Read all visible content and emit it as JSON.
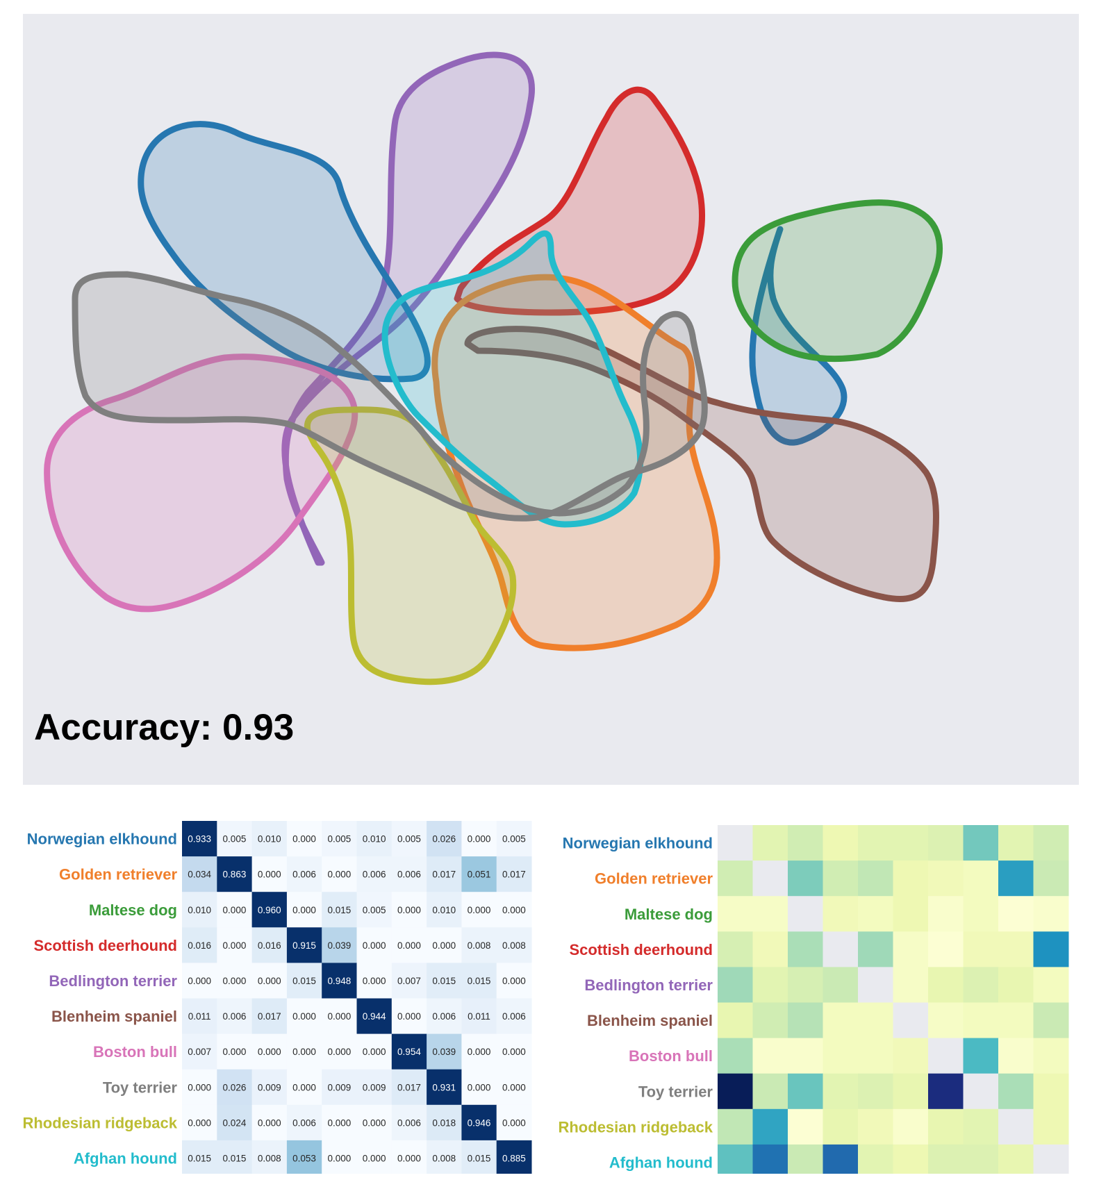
{
  "overlay": {
    "accuracy_text": "Accuracy: 0.93"
  },
  "colors": {
    "panel_bg": "#e9eaef",
    "Norwegian elkhound": "#2677b0",
    "Golden retriever": "#f07f2b",
    "Maltese dog": "#3b9c3a",
    "Scottish deerhound": "#d42b2b",
    "Bedlington terrier": "#9266b8",
    "Blenheim spaniel": "#8a5449",
    "Boston bull": "#d874b8",
    "Toy terrier": "#7f7f7f",
    "Rhodesian ridgeback": "#bcbd32",
    "Afghan hound": "#23bccc"
  },
  "chart_data": [
    {
      "type": "area",
      "title": "",
      "xlabel": "",
      "ylabel": "",
      "series": [
        {
          "name": "Norwegian elkhound"
        },
        {
          "name": "Golden retriever"
        },
        {
          "name": "Maltese dog"
        },
        {
          "name": "Scottish deerhound"
        },
        {
          "name": "Bedlington terrier"
        },
        {
          "name": "Blenheim spaniel"
        },
        {
          "name": "Boston bull"
        },
        {
          "name": "Toy terrier"
        },
        {
          "name": "Rhodesian ridgeback"
        },
        {
          "name": "Afghan hound"
        }
      ],
      "annotation": "Accuracy: 0.93",
      "grid": false,
      "legend": "none"
    },
    {
      "type": "heatmap",
      "title": "",
      "colormap": "Blues",
      "row_labels": [
        "Norwegian elkhound",
        "Golden retriever",
        "Maltese dog",
        "Scottish deerhound",
        "Bedlington terrier",
        "Blenheim spaniel",
        "Boston bull",
        "Toy terrier",
        "Rhodesian ridgeback",
        "Afghan hound"
      ],
      "values": [
        [
          "0.933",
          "0.005",
          "0.010",
          "0.000",
          "0.005",
          "0.010",
          "0.005",
          "0.026",
          "0.000",
          "0.005"
        ],
        [
          "0.034",
          "0.863",
          "0.000",
          "0.006",
          "0.000",
          "0.006",
          "0.006",
          "0.017",
          "0.051",
          "0.017"
        ],
        [
          "0.010",
          "0.000",
          "0.960",
          "0.000",
          "0.015",
          "0.005",
          "0.000",
          "0.010",
          "0.000",
          "0.000"
        ],
        [
          "0.016",
          "0.000",
          "0.016",
          "0.915",
          "0.039",
          "0.000",
          "0.000",
          "0.000",
          "0.008",
          "0.008"
        ],
        [
          "0.000",
          "0.000",
          "0.000",
          "0.015",
          "0.948",
          "0.000",
          "0.007",
          "0.015",
          "0.015",
          "0.000"
        ],
        [
          "0.011",
          "0.006",
          "0.017",
          "0.000",
          "0.000",
          "0.944",
          "0.000",
          "0.006",
          "0.011",
          "0.006"
        ],
        [
          "0.007",
          "0.000",
          "0.000",
          "0.000",
          "0.000",
          "0.000",
          "0.954",
          "0.039",
          "0.000",
          "0.000"
        ],
        [
          "0.000",
          "0.026",
          "0.009",
          "0.000",
          "0.009",
          "0.009",
          "0.017",
          "0.931",
          "0.000",
          "0.000"
        ],
        [
          "0.000",
          "0.024",
          "0.000",
          "0.006",
          "0.000",
          "0.000",
          "0.006",
          "0.018",
          "0.946",
          "0.000"
        ],
        [
          "0.015",
          "0.015",
          "0.008",
          "0.053",
          "0.000",
          "0.000",
          "0.000",
          "0.008",
          "0.015",
          "0.885"
        ]
      ]
    },
    {
      "type": "heatmap",
      "title": "",
      "colormap": "YlGnBu",
      "diagonal": "masked",
      "row_labels": [
        "Norwegian elkhound",
        "Golden retriever",
        "Maltese dog",
        "Scottish deerhound",
        "Bedlington terrier",
        "Blenheim spaniel",
        "Boston bull",
        "Toy terrier",
        "Rhodesian ridgeback",
        "Afghan hound"
      ],
      "intensity": [
        [
          null,
          0.16,
          0.22,
          0.12,
          0.16,
          0.16,
          0.18,
          0.4,
          0.16,
          0.22
        ],
        [
          0.22,
          null,
          0.38,
          0.22,
          0.26,
          0.12,
          0.1,
          0.08,
          0.58,
          0.24
        ],
        [
          0.06,
          0.06,
          null,
          0.1,
          0.08,
          0.12,
          0.04,
          0.08,
          0.02,
          0.04
        ],
        [
          0.2,
          0.1,
          0.3,
          null,
          0.32,
          0.06,
          0.02,
          0.1,
          0.1,
          0.62
        ],
        [
          0.32,
          0.16,
          0.2,
          0.24,
          null,
          0.06,
          0.14,
          0.18,
          0.14,
          0.08
        ],
        [
          0.14,
          0.22,
          0.28,
          0.08,
          0.08,
          null,
          0.06,
          0.08,
          0.08,
          0.24
        ],
        [
          0.3,
          0.04,
          0.04,
          0.08,
          0.08,
          0.1,
          null,
          0.48,
          0.04,
          0.08
        ],
        [
          1.0,
          0.24,
          0.42,
          0.16,
          0.18,
          0.14,
          0.92,
          null,
          0.3,
          0.12
        ],
        [
          0.26,
          0.56,
          0.02,
          0.14,
          0.1,
          0.04,
          0.14,
          0.16,
          null,
          0.12
        ],
        [
          0.44,
          0.7,
          0.24,
          0.72,
          0.16,
          0.12,
          0.18,
          0.18,
          0.14,
          null
        ]
      ]
    }
  ]
}
